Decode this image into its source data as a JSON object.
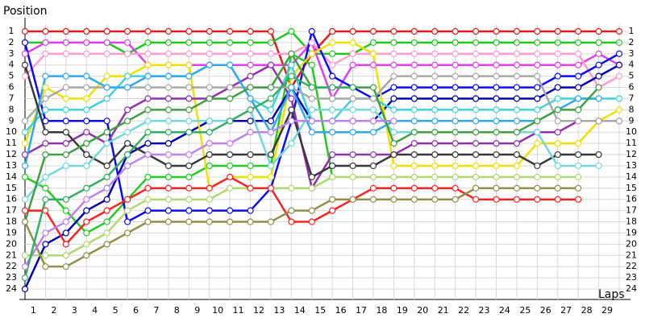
{
  "chart_data": {
    "type": "line",
    "y_label": "Position",
    "x_label": "Laps",
    "x": [
      0,
      1,
      2,
      3,
      4,
      5,
      6,
      7,
      8,
      9,
      10,
      11,
      12,
      13,
      14,
      15,
      16,
      17,
      18,
      19,
      20,
      21,
      22,
      23,
      24,
      25,
      26,
      27,
      28,
      29
    ],
    "xlim": [
      0,
      29
    ],
    "xticks": [
      1,
      2,
      3,
      4,
      5,
      6,
      7,
      8,
      9,
      10,
      11,
      12,
      13,
      14,
      15,
      16,
      17,
      18,
      19,
      20,
      21,
      22,
      23,
      24,
      25,
      26,
      27,
      28,
      29
    ],
    "ylim": [
      1,
      24
    ],
    "yticks": [
      1,
      2,
      3,
      4,
      5,
      6,
      7,
      8,
      9,
      10,
      11,
      12,
      13,
      14,
      15,
      16,
      17,
      18,
      19,
      20,
      21,
      22,
      23,
      24
    ],
    "y_inverted": true,
    "grid": true,
    "series": [
      {
        "color": "#e41a1a",
        "values": [
          1,
          1,
          1,
          1,
          1,
          1,
          1,
          1,
          1,
          1,
          1,
          1,
          1,
          6,
          3,
          1,
          1,
          1,
          1,
          1,
          1,
          1,
          1,
          1,
          1,
          1,
          1,
          1,
          1,
          1
        ]
      },
      {
        "color": "#1ec81e",
        "values": [
          2,
          2,
          2,
          2,
          2,
          3,
          2,
          2,
          2,
          2,
          2,
          2,
          2,
          1,
          3,
          3,
          3,
          2,
          2,
          2,
          2,
          2,
          2,
          2,
          2,
          2,
          2,
          2,
          2,
          2
        ]
      },
      {
        "color": "#e040f0",
        "values": [
          3,
          2,
          2,
          2,
          2,
          2,
          4,
          4,
          4,
          4,
          4,
          4,
          4,
          4,
          2,
          7,
          4,
          4,
          4,
          4,
          4,
          4,
          4,
          4,
          4,
          4,
          4,
          4,
          3,
          4
        ]
      },
      {
        "color": "#ff9ad0",
        "values": [
          5,
          3,
          3,
          3,
          3,
          3,
          3,
          3,
          3,
          3,
          3,
          3,
          3,
          3,
          2,
          4,
          3,
          3,
          3,
          3,
          3,
          3,
          3,
          3,
          3,
          3,
          3,
          3,
          6,
          5
        ]
      },
      {
        "color": "#22cc22",
        "values": [
          14,
          15,
          17,
          19,
          18,
          16,
          14,
          14,
          14,
          13,
          13,
          13,
          13,
          3,
          4,
          14,
          null,
          null,
          null,
          null,
          null,
          null,
          null,
          null,
          null,
          null,
          null,
          null,
          null,
          null
        ]
      },
      {
        "color": "#0a0aff",
        "values": [
          2,
          9,
          9,
          9,
          9,
          18,
          17,
          17,
          17,
          17,
          17,
          17,
          15,
          9,
          1,
          5,
          6,
          7,
          6,
          6,
          6,
          6,
          6,
          6,
          6,
          6,
          5,
          5,
          4,
          3
        ]
      },
      {
        "color": "#0000b0",
        "values": [
          24,
          20,
          19,
          17,
          16,
          12,
          11,
          11,
          10,
          9,
          9,
          9,
          9,
          6,
          9,
          9,
          9,
          9,
          7,
          7,
          7,
          7,
          7,
          7,
          7,
          7,
          6,
          6,
          5,
          4
        ]
      },
      {
        "color": "#f0e000",
        "values": [
          11,
          6,
          7,
          7,
          5,
          5,
          4,
          4,
          4,
          15,
          14,
          14,
          14,
          5,
          3,
          2,
          2,
          3,
          13,
          13,
          13,
          13,
          13,
          13,
          13,
          11,
          11,
          11,
          9,
          8
        ]
      },
      {
        "color": "#40d0e0",
        "values": [
          10,
          8,
          8,
          8,
          7,
          5,
          5,
          5,
          5,
          4,
          4,
          7,
          8,
          4,
          9,
          9,
          7,
          7,
          8,
          8,
          8,
          8,
          8,
          8,
          8,
          8,
          7,
          7,
          7,
          7
        ]
      },
      {
        "color": "#9030b0",
        "values": [
          12,
          11,
          11,
          10,
          11,
          8,
          7,
          7,
          7,
          7,
          6,
          5,
          4,
          7,
          15,
          12,
          12,
          12,
          12,
          11,
          11,
          11,
          11,
          11,
          11,
          10,
          10,
          9,
          9,
          9
        ]
      },
      {
        "color": "#a8a8a8",
        "values": [
          9,
          7,
          6,
          6,
          6,
          6,
          6,
          6,
          6,
          6,
          6,
          6,
          6,
          6,
          7,
          7,
          7,
          7,
          5,
          5,
          5,
          5,
          5,
          5,
          5,
          5,
          9,
          9,
          9,
          9
        ]
      },
      {
        "color": "#30a8f0",
        "values": [
          13,
          5,
          5,
          5,
          6,
          6,
          5,
          5,
          5,
          4,
          4,
          7,
          10,
          6,
          10,
          10,
          10,
          10,
          9,
          9,
          9,
          9,
          9,
          9,
          9,
          9,
          8,
          7,
          7,
          null
        ]
      },
      {
        "color": "#383838",
        "values": [
          4,
          10,
          10,
          12,
          13,
          11,
          12,
          13,
          13,
          12,
          12,
          12,
          12,
          8,
          14,
          13,
          13,
          13,
          12,
          12,
          12,
          12,
          12,
          12,
          12,
          13,
          12,
          12,
          12,
          null
        ]
      },
      {
        "color": "#70d8dc",
        "values": [
          16,
          14,
          13,
          13,
          11,
          10,
          9,
          9,
          9,
          9,
          9,
          8,
          13,
          11,
          8,
          8,
          8,
          8,
          10,
          10,
          10,
          10,
          10,
          10,
          10,
          10,
          13,
          13,
          13,
          null
        ]
      },
      {
        "color": "#40a040",
        "values": [
          18,
          12,
          12,
          11,
          10,
          9,
          8,
          8,
          8,
          7,
          7,
          6,
          6,
          3,
          6,
          6,
          6,
          6,
          11,
          10,
          10,
          10,
          10,
          10,
          10,
          9,
          8,
          8,
          6,
          null
        ]
      },
      {
        "color": "#b0d870",
        "values": [
          21,
          21,
          21,
          20,
          19,
          17,
          16,
          16,
          16,
          16,
          15,
          15,
          15,
          15,
          15,
          14,
          14,
          14,
          14,
          14,
          14,
          14,
          14,
          14,
          14,
          14,
          14,
          14,
          null,
          null
        ]
      },
      {
        "color": "#ff2020",
        "values": [
          17,
          17,
          20,
          18,
          17,
          16,
          15,
          15,
          15,
          15,
          14,
          15,
          15,
          18,
          18,
          17,
          16,
          15,
          15,
          15,
          15,
          15,
          16,
          16,
          16,
          16,
          16,
          16,
          null,
          null
        ]
      },
      {
        "color": "#909048",
        "values": [
          18,
          22,
          22,
          21,
          20,
          19,
          18,
          18,
          18,
          18,
          18,
          18,
          18,
          17,
          17,
          16,
          16,
          16,
          16,
          16,
          16,
          16,
          15,
          15,
          15,
          15,
          15,
          15,
          null,
          null
        ]
      },
      {
        "color": "#c080f0",
        "values": [
          22,
          19,
          18,
          16,
          15,
          13,
          12,
          12,
          12,
          11,
          11,
          10,
          10,
          9,
          9,
          9,
          9,
          9,
          9,
          null,
          null,
          null,
          null,
          null,
          null,
          null,
          null,
          null,
          null,
          null
        ]
      },
      {
        "color": "#30b060",
        "values": [
          23,
          16,
          16,
          15,
          14,
          12,
          10,
          10,
          10,
          10,
          9,
          8,
          7,
          5,
          6,
          6,
          6,
          null,
          null,
          null,
          null,
          null,
          null,
          null,
          null,
          null,
          null,
          null,
          null,
          null
        ]
      }
    ]
  }
}
